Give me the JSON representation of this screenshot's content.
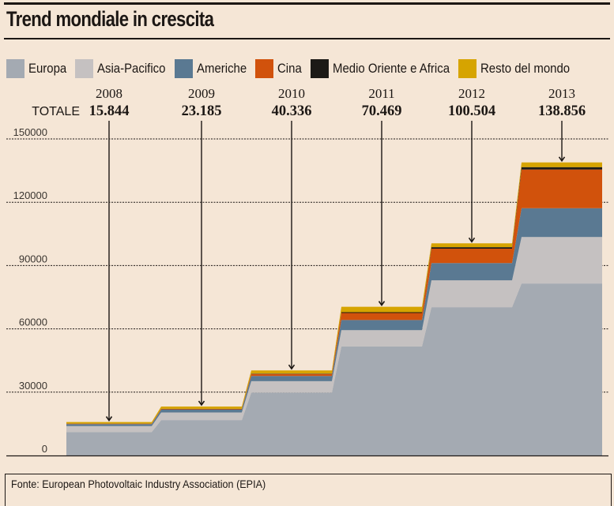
{
  "header": {
    "title": "Trend mondiale in crescita"
  },
  "footer": {
    "source": "Fonte: European Photovoltaic Industry Association (EPIA)"
  },
  "chart_data": {
    "type": "area",
    "subtype": "stacked-step-area",
    "title": "Trend mondiale in crescita",
    "xlabel": "",
    "ylabel": "",
    "ylim": [
      0,
      150000
    ],
    "yticks": [
      0,
      30000,
      60000,
      90000,
      120000,
      150000
    ],
    "ytick_labels": [
      "0",
      "30000",
      "60000",
      "90000",
      "120000",
      "150000"
    ],
    "grid": true,
    "legend_position": "top",
    "totals_label": "TOTALE",
    "categories": [
      "2008",
      "2009",
      "2010",
      "2011",
      "2012",
      "2013"
    ],
    "totals": [
      15844,
      23185,
      40336,
      70469,
      100504,
      138856
    ],
    "totals_text": [
      "15.844",
      "23.185",
      "40.336",
      "70.469",
      "100.504",
      "138.856"
    ],
    "series": [
      {
        "name": "Europa",
        "color": "#a4aab2",
        "values": [
          11100,
          16800,
          29800,
          51700,
          70300,
          81500
        ]
      },
      {
        "name": "Asia-Pacifico",
        "color": "#c5c1c1",
        "values": [
          2800,
          3600,
          5400,
          7700,
          12700,
          22000
        ]
      },
      {
        "name": "Americhe",
        "color": "#5a7992",
        "values": [
          1000,
          1300,
          2500,
          4800,
          8200,
          13700
        ]
      },
      {
        "name": "Cina",
        "color": "#d1520c",
        "values": [
          150,
          300,
          900,
          3300,
          6800,
          18300
        ]
      },
      {
        "name": "Medio Oriente e Africa",
        "color": "#1c1a16",
        "values": [
          50,
          100,
          200,
          400,
          700,
          1100
        ]
      },
      {
        "name": "Resto del mondo",
        "color": "#d6a400",
        "values": [
          744,
          1085,
          1536,
          2569,
          1804,
          2256
        ]
      }
    ]
  }
}
